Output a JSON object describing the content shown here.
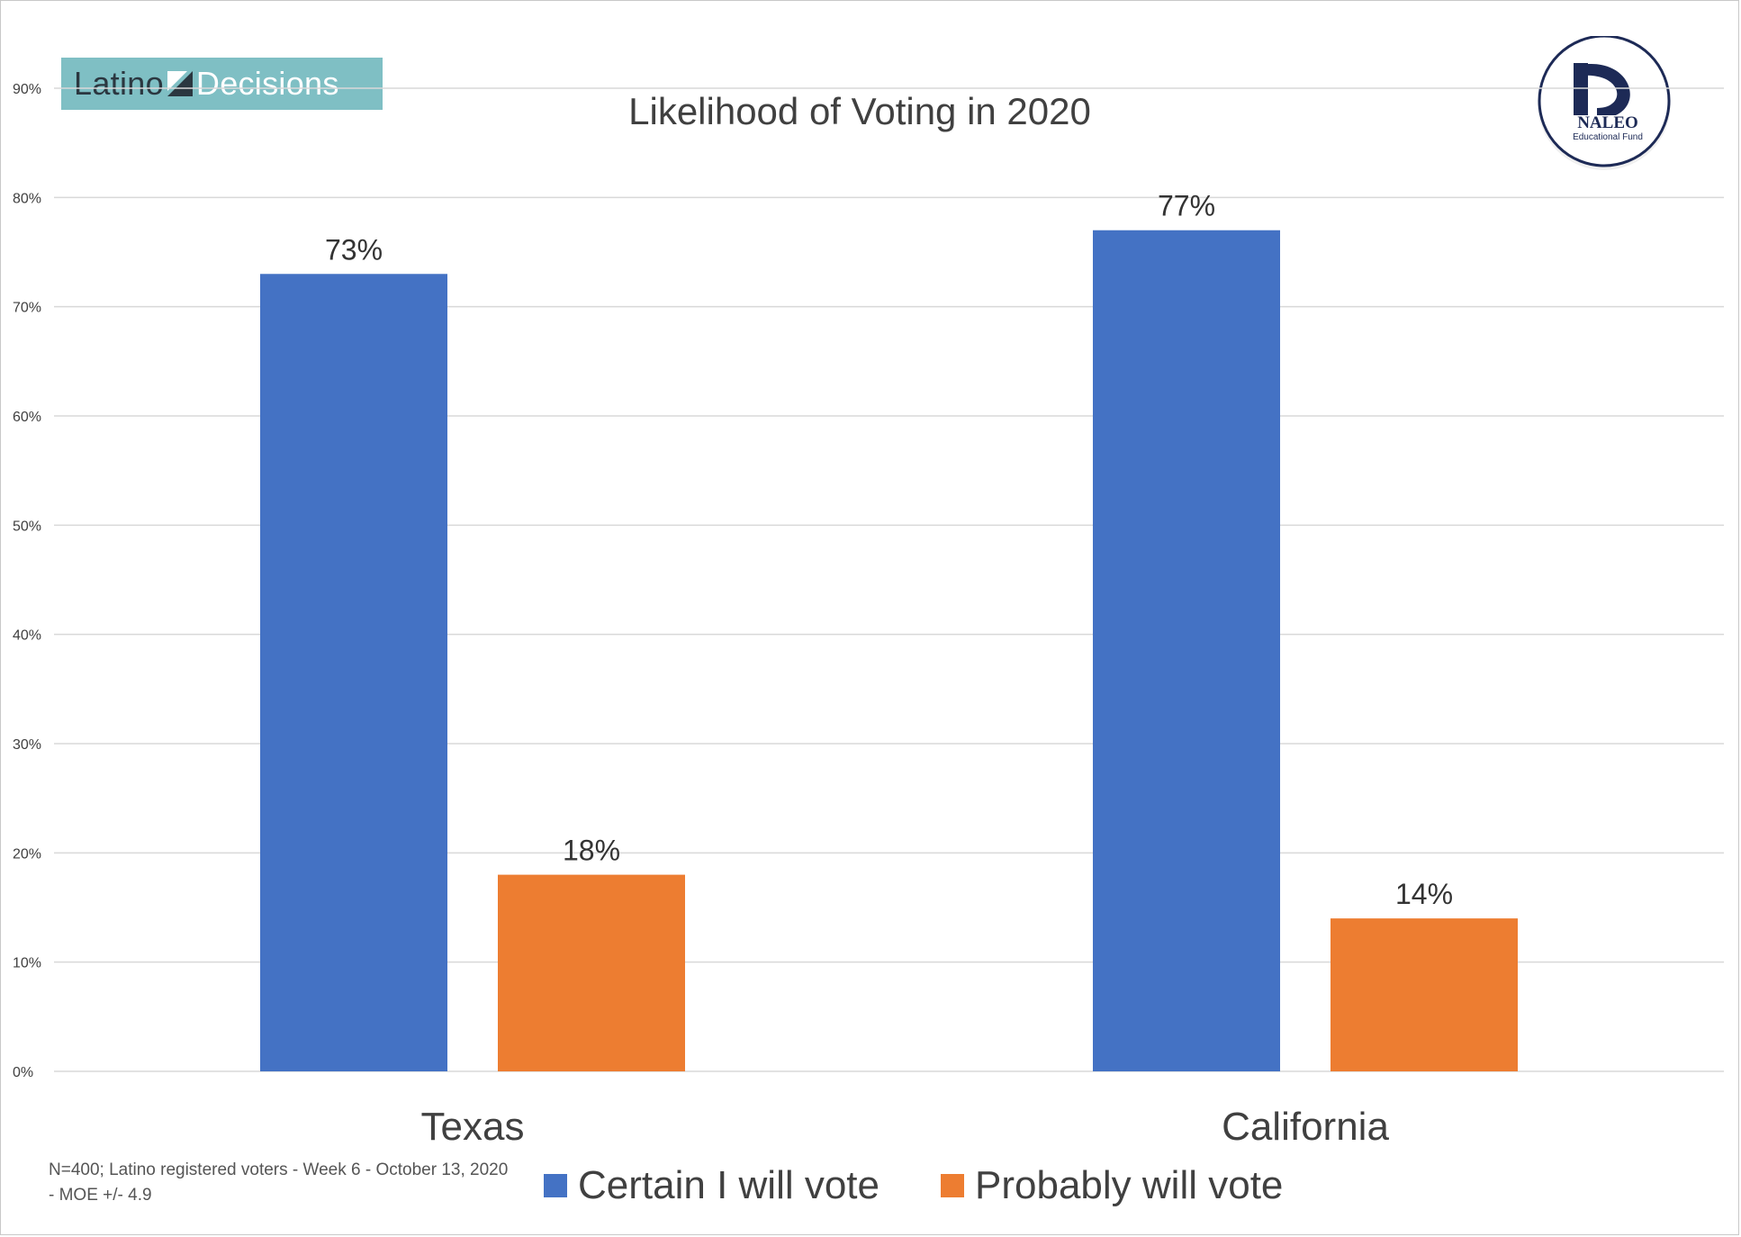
{
  "branding": {
    "left_logo_part1": "Latino",
    "left_logo_part2": "Decisions",
    "right_logo_name": "NALEO",
    "right_logo_sub": "Educational Fund"
  },
  "footnote": "N=400; Latino registered voters - Week 6 - October 13, 2020 - MOE +/- 4.9",
  "colors": {
    "certain": "#4472c4",
    "probably": "#ed7d31",
    "grid": "#d9d9d9",
    "text": "#404040"
  },
  "chart_data": {
    "type": "bar",
    "title": "Likelihood of Voting in 2020",
    "categories": [
      "Texas",
      "California"
    ],
    "series": [
      {
        "name": "Certain I will vote",
        "values": [
          73,
          77
        ],
        "labels": [
          "73%",
          "77%"
        ]
      },
      {
        "name": "Probably will vote",
        "values": [
          18,
          14
        ],
        "labels": [
          "18%",
          "14%"
        ]
      }
    ],
    "ylim": [
      0,
      90
    ],
    "yticks": [
      0,
      10,
      20,
      30,
      40,
      50,
      60,
      70,
      80,
      90
    ],
    "ytick_labels": [
      "0%",
      "10%",
      "20%",
      "30%",
      "40%",
      "50%",
      "60%",
      "70%",
      "80%",
      "90%"
    ],
    "xlabel": "",
    "ylabel": "",
    "grid": true,
    "legend_position": "bottom"
  }
}
